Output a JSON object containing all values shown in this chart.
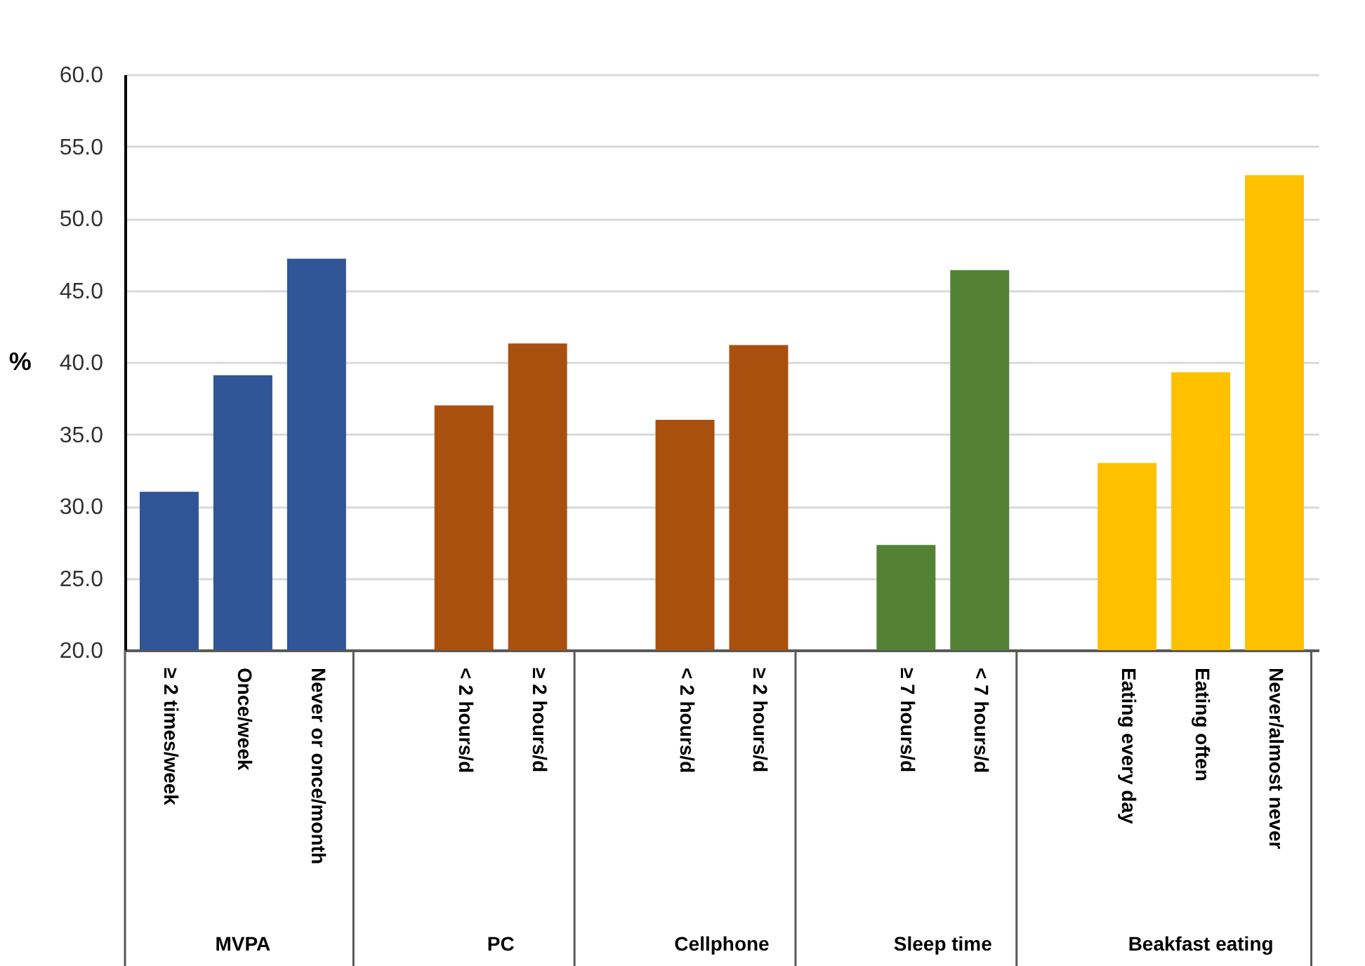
{
  "chart_data": {
    "type": "bar",
    "ylabel": "%",
    "categories": [
      "≥ 2 times/week",
      "Once/week",
      "Never or once/month",
      "< 2 hours/d",
      "≥ 2 hours/d",
      "< 2 hours/d",
      "≥ 2 hours/d",
      "≥ 7 hours/d",
      "< 7 hours/d",
      "Eating every day",
      "Eating often",
      "Never/almost never"
    ],
    "series": [
      {
        "color": "#2f5597",
        "values": [
          31.0,
          39.1,
          47.2,
          null,
          null,
          null,
          null,
          null,
          null,
          null,
          null,
          null
        ]
      },
      {
        "color": "#a9500e",
        "values": [
          null,
          null,
          null,
          37.0,
          41.3,
          null,
          null,
          null,
          null,
          null,
          null,
          null
        ]
      },
      {
        "color": "#a9500e",
        "values": [
          null,
          null,
          null,
          null,
          null,
          36.0,
          41.2,
          null,
          null,
          null,
          null,
          null
        ]
      },
      {
        "color": "#548235",
        "values": [
          null,
          null,
          null,
          null,
          null,
          null,
          null,
          27.3,
          46.4,
          null,
          null,
          null
        ]
      },
      {
        "color": "#ffc000",
        "values": [
          null,
          null,
          null,
          null,
          null,
          null,
          null,
          null,
          null,
          33.0,
          39.3,
          53.0
        ]
      }
    ],
    "ylim": [
      20,
      60
    ],
    "yticks": [
      {
        "value": 20,
        "label": "20.0"
      },
      {
        "value": 25,
        "label": "25.0"
      },
      {
        "value": 30,
        "label": "30.0"
      },
      {
        "value": 35,
        "label": "35.0"
      },
      {
        "value": 40,
        "label": "40.0"
      },
      {
        "value": 45,
        "label": "45.0"
      },
      {
        "value": 50,
        "label": "50.0"
      },
      {
        "value": 55,
        "label": "55.0"
      },
      {
        "value": 60,
        "label": "60.0"
      }
    ],
    "annotations": [
      "MVPA",
      "PC",
      "Cellphone",
      "Sleep time",
      "Beakfast eating"
    ],
    "grid": "y",
    "legend": false
  }
}
